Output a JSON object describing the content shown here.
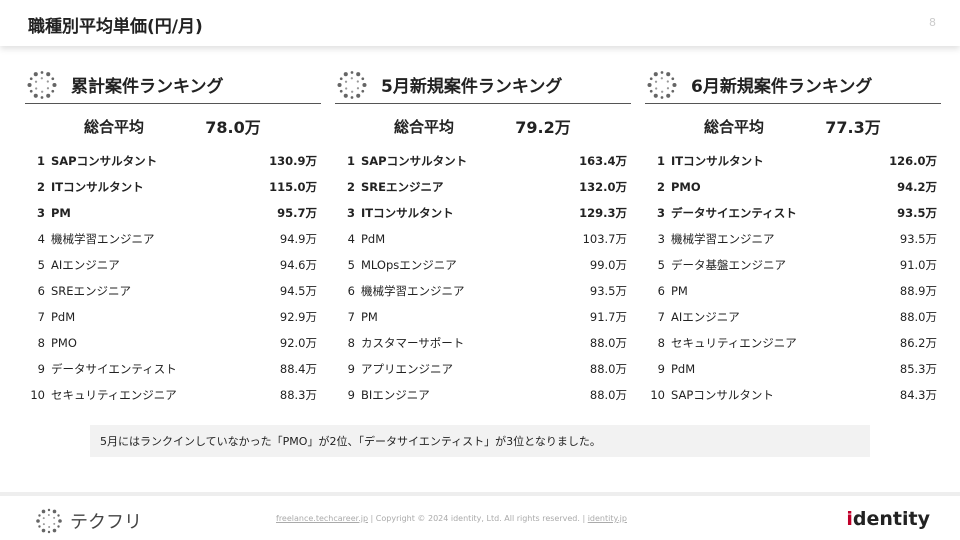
{
  "header": {
    "title": "職種別平均単価(円/月)",
    "page": "8"
  },
  "columns": [
    {
      "title": "累計案件ランキング",
      "avg_label": "総合平均",
      "avg_value": "78.0万",
      "rows": [
        [
          "1",
          "SAPコンサルタント",
          "130.9万"
        ],
        [
          "2",
          "ITコンサルタント",
          "115.0万"
        ],
        [
          "3",
          "PM",
          "95.7万"
        ],
        [
          "4",
          "機械学習エンジニア",
          "94.9万"
        ],
        [
          "5",
          "AIエンジニア",
          "94.6万"
        ],
        [
          "6",
          "SREエンジニア",
          "94.5万"
        ],
        [
          "7",
          "PdM",
          "92.9万"
        ],
        [
          "8",
          "PMO",
          "92.0万"
        ],
        [
          "9",
          "データサイエンティスト",
          "88.4万"
        ],
        [
          "10",
          "セキュリティエンジニア",
          "88.3万"
        ]
      ]
    },
    {
      "title": "5月新規案件ランキング",
      "avg_label": "総合平均",
      "avg_value": "79.2万",
      "rows": [
        [
          "1",
          "SAPコンサルタント",
          "163.4万"
        ],
        [
          "2",
          "SREエンジニア",
          "132.0万"
        ],
        [
          "3",
          "ITコンサルタント",
          "129.3万"
        ],
        [
          "4",
          "PdM",
          "103.7万"
        ],
        [
          "5",
          "MLOpsエンジニア",
          "99.0万"
        ],
        [
          "6",
          "機械学習エンジニア",
          "93.5万"
        ],
        [
          "7",
          "PM",
          "91.7万"
        ],
        [
          "8",
          "カスタマーサポート",
          "88.0万"
        ],
        [
          "9",
          "アプリエンジニア",
          "88.0万"
        ],
        [
          "9",
          "BIエンジニア",
          "88.0万"
        ]
      ]
    },
    {
      "title": "6月新規案件ランキング",
      "avg_label": "総合平均",
      "avg_value": "77.3万",
      "rows": [
        [
          "1",
          "ITコンサルタント",
          "126.0万"
        ],
        [
          "2",
          "PMO",
          "94.2万"
        ],
        [
          "3",
          "データサイエンティスト",
          "93.5万"
        ],
        [
          "3",
          "機械学習エンジニア",
          "93.5万"
        ],
        [
          "5",
          "データ基盤エンジニア",
          "91.0万"
        ],
        [
          "6",
          "PM",
          "88.9万"
        ],
        [
          "7",
          "AIエンジニア",
          "88.0万"
        ],
        [
          "8",
          "セキュリティエンジニア",
          "86.2万"
        ],
        [
          "9",
          "PdM",
          "85.3万"
        ],
        [
          "10",
          "SAPコンサルタント",
          "84.3万"
        ]
      ]
    }
  ],
  "note": "5月にはランクインしていなかった「PMO」が2位、「データサイエンティスト」が3位となりました。",
  "footer": {
    "logo": "テクフリ",
    "link1": "freelance.techcareer.jp",
    "copyright": "Copyright © 2024 identity, Ltd. All rights reserved.",
    "link2": "identity.jp",
    "brand_i": "i",
    "brand_rest": "dentity"
  }
}
